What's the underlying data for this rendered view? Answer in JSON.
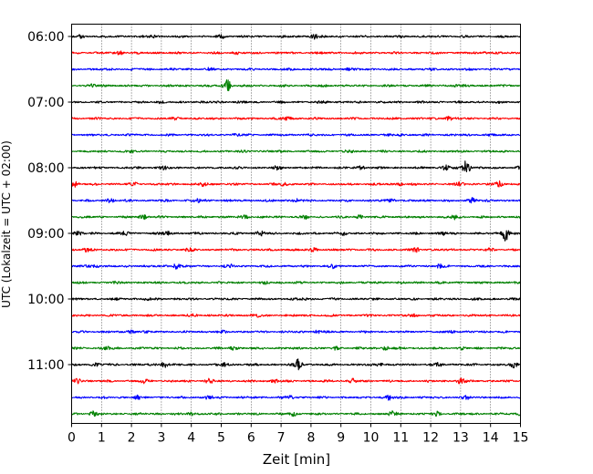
{
  "chart_data": {
    "type": "line",
    "title": "",
    "xlabel": "Zeit  [min]",
    "ylabel": "UTC (Lokalzeit = UTC + 02:00)",
    "xlim": [
      0,
      15
    ],
    "x_ticks": [
      "0",
      "1",
      "2",
      "3",
      "4",
      "5",
      "6",
      "7",
      "8",
      "9",
      "10",
      "11",
      "12",
      "13",
      "14",
      "15"
    ],
    "grid": "vertical dotted",
    "y_ticks": [
      "06:00",
      "07:00",
      "08:00",
      "09:00",
      "10:00",
      "11:00"
    ],
    "row_interval_min": 15,
    "start_time": "06:00",
    "end_time": "12:00",
    "color_cycle": [
      "#000000",
      "#ff0000",
      "#0000ff",
      "#008000"
    ],
    "series": [
      {
        "start": "06:00",
        "color": "#000000",
        "events": [
          [
            8.1,
            2.5
          ],
          [
            5.0,
            1.5
          ],
          [
            2.7,
            1.2
          ],
          [
            0.3,
            1.0
          ]
        ]
      },
      {
        "start": "06:15",
        "color": "#ff0000",
        "events": [
          [
            1.6,
            2.0
          ],
          [
            5.5,
            1.2
          ],
          [
            13.8,
            1.0
          ]
        ]
      },
      {
        "start": "06:30",
        "color": "#0000ff",
        "events": [
          [
            4.6,
            1.2
          ],
          [
            9.2,
            1.0
          ]
        ]
      },
      {
        "start": "06:45",
        "color": "#008000",
        "events": [
          [
            5.2,
            6.0
          ],
          [
            0.7,
            1.5
          ],
          [
            12.8,
            1.0
          ]
        ]
      },
      {
        "start": "07:00",
        "color": "#000000",
        "events": [
          [
            3.0,
            1.2
          ],
          [
            8.5,
            1.0
          ]
        ]
      },
      {
        "start": "07:15",
        "color": "#ff0000",
        "events": [
          [
            7.2,
            1.5
          ],
          [
            12.6,
            2.0
          ],
          [
            3.5,
            1.0
          ]
        ]
      },
      {
        "start": "07:30",
        "color": "#0000ff",
        "events": [
          [
            11.0,
            1.0
          ],
          [
            5.5,
            0.8
          ]
        ]
      },
      {
        "start": "07:45",
        "color": "#008000",
        "events": [
          [
            2.0,
            1.2
          ],
          [
            9.3,
            1.0
          ]
        ]
      },
      {
        "start": "08:00",
        "color": "#000000",
        "events": [
          [
            13.2,
            8.0
          ],
          [
            12.5,
            2.5
          ],
          [
            9.7,
            2.0
          ],
          [
            6.9,
            1.8
          ],
          [
            3.1,
            1.5
          ],
          [
            15.0,
            1.5
          ]
        ]
      },
      {
        "start": "08:15",
        "color": "#ff0000",
        "events": [
          [
            14.3,
            3.0
          ],
          [
            13.0,
            2.0
          ],
          [
            0.1,
            2.5
          ],
          [
            7.1,
            1.8
          ],
          [
            4.4,
            1.8
          ],
          [
            11.0,
            1.8
          ],
          [
            2.1,
            1.5
          ]
        ]
      },
      {
        "start": "08:30",
        "color": "#0000ff",
        "events": [
          [
            1.3,
            2.0
          ],
          [
            13.4,
            3.0
          ],
          [
            7.5,
            1.8
          ],
          [
            10.7,
            1.5
          ],
          [
            4.2,
            1.5
          ]
        ]
      },
      {
        "start": "08:45",
        "color": "#008000",
        "events": [
          [
            2.4,
            2.5
          ],
          [
            12.8,
            2.2
          ],
          [
            5.8,
            1.8
          ],
          [
            9.6,
            1.8
          ],
          [
            7.8,
            1.5
          ]
        ]
      },
      {
        "start": "09:00",
        "color": "#000000",
        "events": [
          [
            14.5,
            9.0
          ],
          [
            6.3,
            2.5
          ],
          [
            12.4,
            2.0
          ],
          [
            9.1,
            2.0
          ],
          [
            3.2,
            2.0
          ],
          [
            1.8,
            1.8
          ],
          [
            0.2,
            1.8
          ]
        ]
      },
      {
        "start": "09:15",
        "color": "#ff0000",
        "events": [
          [
            11.5,
            2.0
          ],
          [
            8.1,
            1.8
          ],
          [
            3.9,
            1.8
          ],
          [
            0.5,
            1.5
          ],
          [
            14.0,
            1.5
          ]
        ]
      },
      {
        "start": "09:30",
        "color": "#0000ff",
        "events": [
          [
            3.5,
            3.0
          ],
          [
            8.7,
            2.0
          ],
          [
            12.3,
            1.8
          ],
          [
            0.8,
            1.5
          ],
          [
            5.3,
            1.5
          ]
        ]
      },
      {
        "start": "09:45",
        "color": "#008000",
        "events": [
          [
            1.4,
            1.2
          ],
          [
            6.5,
            1.0
          ]
        ]
      },
      {
        "start": "10:00",
        "color": "#000000",
        "events": [
          [
            2.5,
            1.2
          ],
          [
            7.8,
            1.0
          ]
        ]
      },
      {
        "start": "10:15",
        "color": "#ff0000",
        "events": [
          [
            6.2,
            1.5
          ],
          [
            11.5,
            1.2
          ],
          [
            4.1,
            1.0
          ]
        ]
      },
      {
        "start": "10:30",
        "color": "#0000ff",
        "events": [
          [
            2.0,
            1.5
          ],
          [
            8.2,
            1.5
          ],
          [
            12.7,
            1.5
          ],
          [
            5.0,
            1.0
          ]
        ]
      },
      {
        "start": "10:45",
        "color": "#008000",
        "events": [
          [
            5.4,
            2.0
          ],
          [
            10.5,
            1.8
          ],
          [
            1.2,
            1.5
          ],
          [
            13.0,
            1.5
          ],
          [
            8.8,
            1.2
          ]
        ]
      },
      {
        "start": "11:00",
        "color": "#000000",
        "events": [
          [
            7.6,
            7.0
          ],
          [
            3.1,
            3.0
          ],
          [
            14.8,
            2.5
          ],
          [
            12.3,
            2.0
          ],
          [
            5.1,
            2.0
          ],
          [
            0.8,
            2.0
          ],
          [
            10.3,
            1.8
          ]
        ]
      },
      {
        "start": "11:15",
        "color": "#ff0000",
        "events": [
          [
            13.0,
            3.0
          ],
          [
            4.6,
            2.5
          ],
          [
            0.2,
            2.2
          ],
          [
            9.4,
            2.0
          ],
          [
            2.4,
            1.8
          ],
          [
            6.8,
            1.8
          ]
        ]
      },
      {
        "start": "11:30",
        "color": "#0000ff",
        "events": [
          [
            10.6,
            2.5
          ],
          [
            4.6,
            2.2
          ],
          [
            2.2,
            1.8
          ],
          [
            7.3,
            1.8
          ],
          [
            13.2,
            1.5
          ]
        ]
      },
      {
        "start": "11:45",
        "color": "#008000",
        "events": [
          [
            10.7,
            3.0
          ],
          [
            0.7,
            2.5
          ],
          [
            15.0,
            2.0
          ],
          [
            4.0,
            2.0
          ],
          [
            7.4,
            1.8
          ],
          [
            12.2,
            1.8
          ]
        ]
      }
    ]
  }
}
